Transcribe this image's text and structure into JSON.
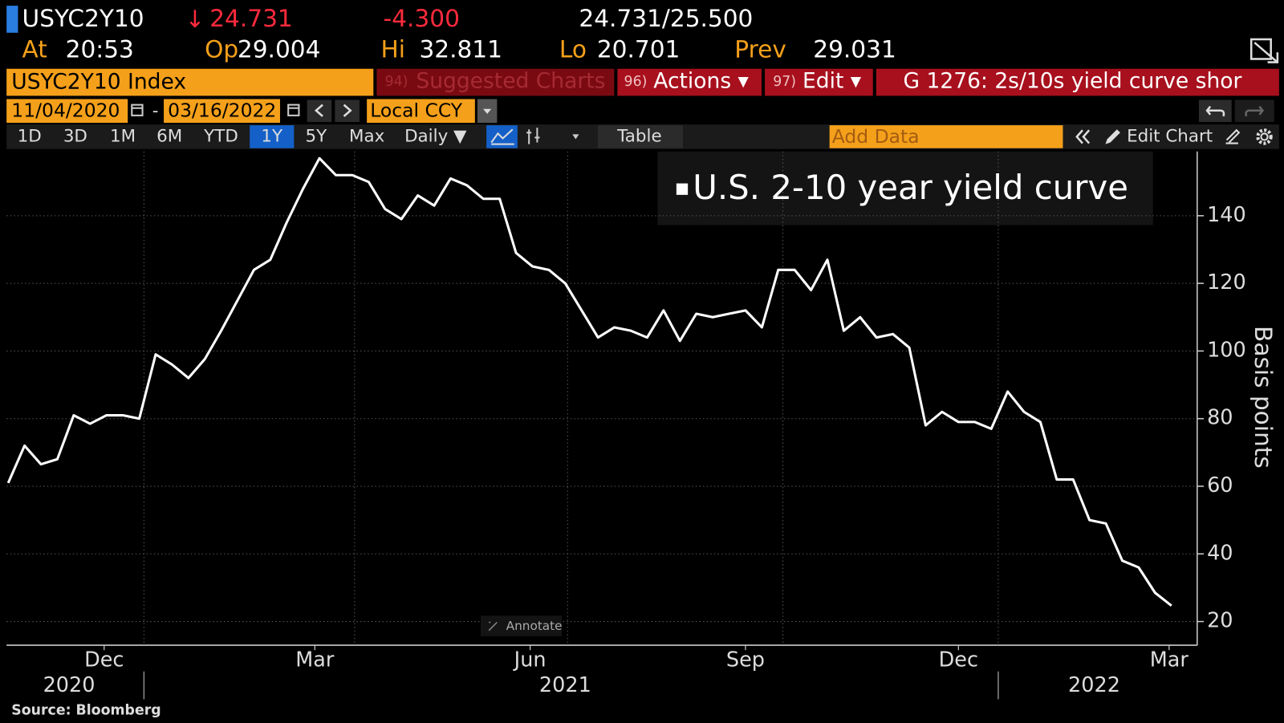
{
  "header": {
    "ticker": "USYC2Y10",
    "arrow": "↓",
    "last": "24.731",
    "change": "-4.300",
    "bid_ask": "24.731/25.500",
    "quote_fields": [
      {
        "label": "At",
        "value": "20:53"
      },
      {
        "label": "Op",
        "value": "29.004"
      },
      {
        "label": "Hi",
        "value": "32.811"
      },
      {
        "label": "Lo",
        "value": "20.701"
      },
      {
        "label": "Prev",
        "value": "29.031"
      }
    ]
  },
  "toolbar": {
    "security": "USYC2Y10 Index",
    "menus": [
      {
        "key": "94)",
        "label": "Suggested Charts"
      },
      {
        "key": "96)",
        "label": "Actions ▾"
      },
      {
        "key": "97)",
        "label": "Edit ▾"
      }
    ],
    "function_title": "G 1276: 2s/10s yield curve shor",
    "start_date": "11/04/2020",
    "date_separator": "-",
    "end_date": "03/16/2022",
    "currency": "Local CCY",
    "periods": [
      "1D",
      "3D",
      "1M",
      "6M",
      "YTD",
      "1Y",
      "5Y",
      "Max"
    ],
    "active_period": "1Y",
    "frequency": "Daily ▼",
    "table_button": "Table",
    "add_data": "Add Data",
    "edit_chart": "Edit Chart"
  },
  "annotate": "Annotate",
  "source": "Source: Bloomberg",
  "chart_data": {
    "type": "line",
    "y_label": "Basis points",
    "x": [
      "2020-11-04",
      "2020-11-11",
      "2020-11-18",
      "2020-11-25",
      "2020-12-02",
      "2020-12-09",
      "2020-12-16",
      "2020-12-23",
      "2020-12-30",
      "2021-01-06",
      "2021-01-13",
      "2021-01-20",
      "2021-01-27",
      "2021-02-03",
      "2021-02-10",
      "2021-02-17",
      "2021-02-24",
      "2021-03-03",
      "2021-03-10",
      "2021-03-17",
      "2021-03-24",
      "2021-03-31",
      "2021-04-07",
      "2021-04-14",
      "2021-04-21",
      "2021-04-28",
      "2021-05-05",
      "2021-05-12",
      "2021-05-19",
      "2021-05-26",
      "2021-06-02",
      "2021-06-09",
      "2021-06-16",
      "2021-06-23",
      "2021-06-30",
      "2021-07-07",
      "2021-07-14",
      "2021-07-21",
      "2021-07-28",
      "2021-08-04",
      "2021-08-11",
      "2021-08-18",
      "2021-08-25",
      "2021-09-01",
      "2021-09-08",
      "2021-09-15",
      "2021-09-22",
      "2021-09-29",
      "2021-10-06",
      "2021-10-13",
      "2021-10-20",
      "2021-10-27",
      "2021-11-03",
      "2021-11-10",
      "2021-11-17",
      "2021-11-24",
      "2021-12-01",
      "2021-12-08",
      "2021-12-15",
      "2021-12-22",
      "2021-12-29",
      "2022-01-05",
      "2022-01-12",
      "2022-01-19",
      "2022-01-26",
      "2022-02-02",
      "2022-02-09",
      "2022-02-16",
      "2022-02-23",
      "2022-03-02",
      "2022-03-09",
      "2022-03-16"
    ],
    "series": [
      {
        "name": "U.S. 2-10 year yield curve",
        "color": "#ffffff",
        "values": [
          61,
          72,
          66.5,
          68,
          81,
          78.5,
          81,
          81,
          80,
          99,
          96,
          92,
          97.6,
          106,
          115,
          124,
          127,
          138,
          148,
          157,
          152,
          152,
          150,
          142,
          139,
          146,
          143,
          151,
          149,
          145,
          145,
          129,
          125,
          124,
          120,
          112,
          104,
          107,
          106,
          104,
          112,
          103,
          111,
          110,
          111,
          112,
          107,
          124,
          124,
          118,
          127,
          106,
          110,
          104,
          105,
          101,
          78,
          82,
          79,
          79,
          77,
          88,
          82,
          79,
          62,
          62,
          50,
          49,
          38,
          36,
          28.5,
          24.7
        ]
      }
    ],
    "xlim": [
      "2020-11-04",
      "2022-03-27"
    ],
    "xticks": [
      {
        "value": "2020-12-15",
        "label": "Dec"
      },
      {
        "value": "2021-03-15",
        "label": "Mar"
      },
      {
        "value": "2021-06-15",
        "label": "Jun"
      },
      {
        "value": "2021-09-15",
        "label": "Sep"
      },
      {
        "value": "2021-12-15",
        "label": "Dec"
      },
      {
        "value": "2022-03-15",
        "label": "Mar"
      }
    ],
    "year_ticks": [
      {
        "value": "2020-11-30",
        "label": "2020"
      },
      {
        "value": "2021-06-30",
        "label": "2021"
      },
      {
        "value": "2022-02-11",
        "label": "2022"
      }
    ],
    "xgrid": [
      "2021-01-01",
      "2021-04-01",
      "2021-07-01",
      "2021-10-01",
      "2022-01-01"
    ],
    "ylim": [
      13,
      159
    ],
    "yticks": [
      20,
      40,
      60,
      80,
      100,
      120,
      140
    ],
    "grid": true,
    "y_axis_side": "right",
    "legend": "top-right"
  }
}
